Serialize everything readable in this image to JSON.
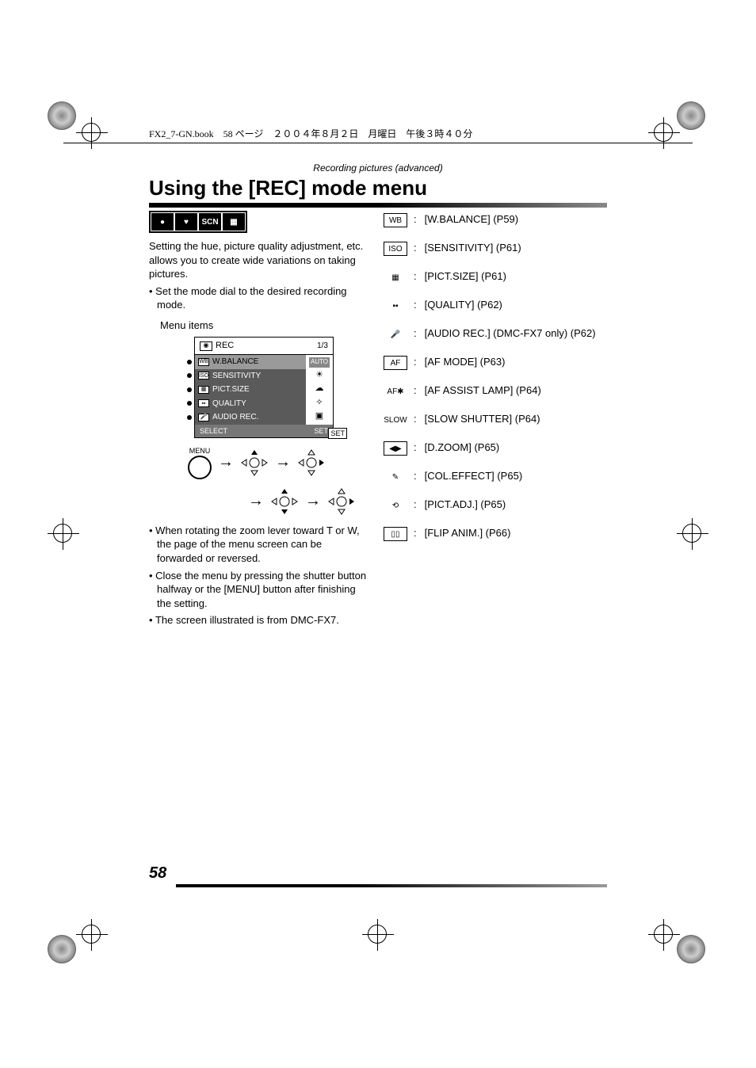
{
  "header": {
    "file_info": "FX2_7-GN.book　58 ページ　２００４年８月２日　月曜日　午後３時４０分"
  },
  "section_label": "Recording pictures (advanced)",
  "heading": "Using the [REC] mode menu",
  "mode_icons": [
    "●",
    "♥",
    "SCN",
    "▦"
  ],
  "intro": "Setting the hue, picture quality adjustment, etc. allows you to create wide variations on taking pictures.",
  "bullets_top": [
    "Set the mode dial to the desired recording mode."
  ],
  "menu_items_label": "Menu items",
  "menu_screen": {
    "title": "REC",
    "page_indicator": "1/3",
    "rows": [
      {
        "icon": "WB",
        "label": "W.BALANCE",
        "selected": true
      },
      {
        "icon": "ISO",
        "label": "SENSITIVITY",
        "selected": false
      },
      {
        "icon": "▦",
        "label": "PICT.SIZE",
        "selected": false
      },
      {
        "icon": "▪▪",
        "label": "QUALITY",
        "selected": false
      },
      {
        "icon": "🎤",
        "label": "AUDIO REC.",
        "selected": false
      }
    ],
    "side_labels": [
      "AUTO",
      "☀",
      "☁",
      "✧",
      "▣"
    ],
    "footer_select": "SELECT",
    "footer_set": "SET",
    "set_badge": "SET",
    "menu_button": "MENU"
  },
  "bullets_bottom": [
    "When rotating the zoom lever toward T or W, the page of the menu screen can be forwarded or reversed.",
    "Close the menu by pressing the shutter button halfway or the [MENU] button after finishing the setting.",
    "The screen illustrated is from DMC-FX7."
  ],
  "menu_refs": [
    {
      "icon": "WB",
      "boxed": true,
      "label": "[W.BALANCE] (P59)"
    },
    {
      "icon": "ISO",
      "boxed": true,
      "label": "[SENSITIVITY] (P61)"
    },
    {
      "icon": "▦",
      "boxed": false,
      "label": "[PICT.SIZE] (P61)"
    },
    {
      "icon": "▪▪",
      "boxed": false,
      "label": "[QUALITY] (P62)"
    },
    {
      "icon": "🎤",
      "boxed": false,
      "label": "[AUDIO REC.] (DMC-FX7 only) (P62)"
    },
    {
      "icon": "AF",
      "boxed": true,
      "label": "[AF MODE] (P63)"
    },
    {
      "icon": "AF✱",
      "boxed": false,
      "label": "[AF ASSIST LAMP] (P64)"
    },
    {
      "icon": "SLOW",
      "boxed": false,
      "label": "[SLOW SHUTTER] (P64)"
    },
    {
      "icon": "◀▶",
      "boxed": true,
      "label": "[D.ZOOM] (P65)"
    },
    {
      "icon": "✎",
      "boxed": false,
      "label": "[COL.EFFECT] (P65)"
    },
    {
      "icon": "⟲",
      "boxed": false,
      "label": "[PICT.ADJ.] (P65)"
    },
    {
      "icon": "▯▯",
      "boxed": true,
      "label": "[FLIP ANIM.] (P66)"
    }
  ],
  "page_number": "58",
  "colors": {
    "text": "#000000",
    "menu_bg": "#5a5a5a",
    "menu_sel": "#9a9a9a",
    "gradient_dark": "#000000",
    "gradient_light": "#999999"
  }
}
